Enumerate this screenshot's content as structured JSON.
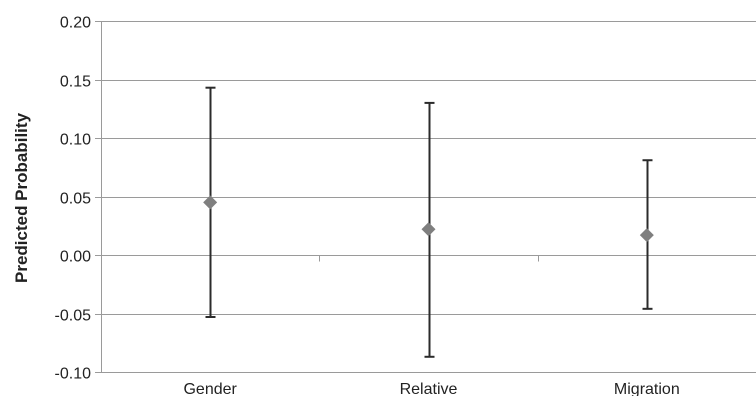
{
  "chart_data": {
    "type": "scatter",
    "title": "",
    "xlabel": "",
    "ylabel": "Predicted Probability",
    "categories": [
      "Gender",
      "Relative",
      "Migration"
    ],
    "values": [
      0.045,
      0.022,
      0.017
    ],
    "error_low": [
      -0.053,
      -0.087,
      -0.046
    ],
    "error_high": [
      0.143,
      0.13,
      0.081
    ],
    "ylim": [
      -0.1,
      0.2
    ],
    "yticks": [
      -0.1,
      -0.05,
      0.0,
      0.05,
      0.1,
      0.15,
      0.2
    ],
    "ytick_labels": [
      "-0.10",
      "-0.05",
      "0.00",
      "0.05",
      "0.10",
      "0.15",
      "0.20"
    ],
    "grid": true,
    "legend": "none",
    "marker": "diamond",
    "colors": {
      "marker": "#7f7f7f",
      "errorbar": "#2b2b2b",
      "grid": "#9a9a9a",
      "axis": "#9a9a9a"
    }
  }
}
